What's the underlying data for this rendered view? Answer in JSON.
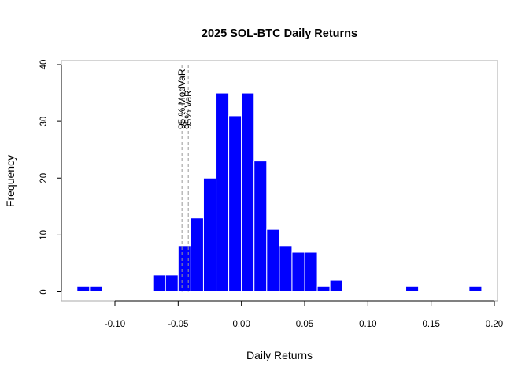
{
  "chart_data": {
    "type": "bar",
    "title": "2025 SOL-BTC Daily Returns",
    "xlabel": "Daily Returns",
    "ylabel": "Frequency",
    "xlim": [
      -0.13,
      0.2
    ],
    "ylim": [
      0,
      40
    ],
    "x_ticks": [
      -0.1,
      -0.05,
      0.0,
      0.05,
      0.1,
      0.15,
      0.2
    ],
    "x_tick_labels": [
      "-0.10",
      "-0.05",
      "0.00",
      "0.05",
      "0.10",
      "0.15",
      "0.20"
    ],
    "y_ticks": [
      0,
      10,
      20,
      30,
      40
    ],
    "y_tick_labels": [
      "0",
      "10",
      "20",
      "30",
      "40"
    ],
    "bin_width": 0.01,
    "bins": [
      {
        "start": -0.13,
        "count": 1
      },
      {
        "start": -0.12,
        "count": 1
      },
      {
        "start": -0.07,
        "count": 3
      },
      {
        "start": -0.06,
        "count": 3
      },
      {
        "start": -0.05,
        "count": 8
      },
      {
        "start": -0.04,
        "count": 13
      },
      {
        "start": -0.03,
        "count": 20
      },
      {
        "start": -0.02,
        "count": 35
      },
      {
        "start": -0.01,
        "count": 31
      },
      {
        "start": 0.0,
        "count": 35
      },
      {
        "start": 0.01,
        "count": 23
      },
      {
        "start": 0.02,
        "count": 11
      },
      {
        "start": 0.03,
        "count": 8
      },
      {
        "start": 0.04,
        "count": 7
      },
      {
        "start": 0.05,
        "count": 7
      },
      {
        "start": 0.06,
        "count": 1
      },
      {
        "start": 0.07,
        "count": 2
      },
      {
        "start": 0.13,
        "count": 1
      },
      {
        "start": 0.18,
        "count": 1
      }
    ],
    "reference_lines": [
      {
        "value": -0.047,
        "label": "95 % ModVaR"
      },
      {
        "value": -0.042,
        "label": "95% VaR"
      }
    ],
    "bar_color": "#0000ff",
    "bar_border_color": "#ffffff",
    "ref_line_color": "#999999",
    "grid": false,
    "legend": "none"
  }
}
